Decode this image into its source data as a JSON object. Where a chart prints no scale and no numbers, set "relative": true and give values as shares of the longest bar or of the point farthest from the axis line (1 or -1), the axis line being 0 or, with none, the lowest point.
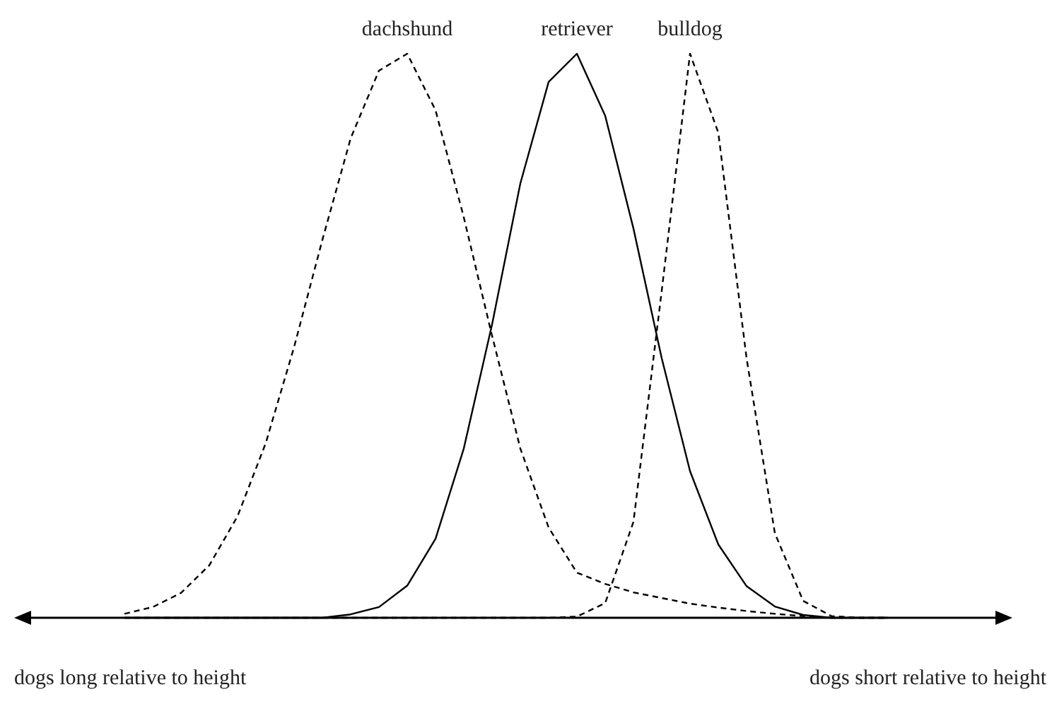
{
  "chart_data": {
    "type": "line",
    "relative": true,
    "categories": [
      null,
      null,
      null,
      null,
      null,
      null,
      null,
      null,
      null,
      null,
      null,
      null,
      null,
      null,
      null,
      null,
      null,
      null,
      null,
      null,
      null,
      null,
      null,
      null,
      null,
      null,
      null,
      null
    ],
    "series": [
      {
        "name": "dachshund",
        "color": "#000000",
        "line_style": "dashed",
        "values": [
          0.007,
          0.019,
          0.044,
          0.093,
          0.18,
          0.31,
          0.48,
          0.67,
          0.85,
          0.97,
          1,
          0.9,
          0.71,
          0.5,
          0.3,
          0.16,
          0.08,
          0.06,
          0.045,
          0.035,
          0.025,
          0.018,
          0.012,
          0.007,
          0.003,
          0,
          0,
          0
        ]
      },
      {
        "name": "retriever",
        "color": "#000000",
        "line_style": "solid",
        "values": [
          0,
          0,
          0,
          0,
          0,
          0,
          0,
          0,
          0.006,
          0.019,
          0.057,
          0.14,
          0.3,
          0.52,
          0.77,
          0.95,
          1,
          0.89,
          0.69,
          0.46,
          0.26,
          0.13,
          0.056,
          0.02,
          0.005,
          0,
          0,
          0
        ]
      },
      {
        "name": "bulldog",
        "color": "#000000",
        "line_style": "dashed",
        "values": [
          0,
          0,
          0,
          0,
          0,
          0,
          0,
          0,
          0,
          0,
          0,
          0,
          0,
          0,
          0,
          0,
          0.002,
          0.026,
          0.17,
          0.58,
          1,
          0.86,
          0.46,
          0.15,
          0.03,
          0.003,
          0,
          0
        ]
      }
    ],
    "annotations": [
      "dogs long relative to height",
      "dogs short relative to height"
    ]
  }
}
